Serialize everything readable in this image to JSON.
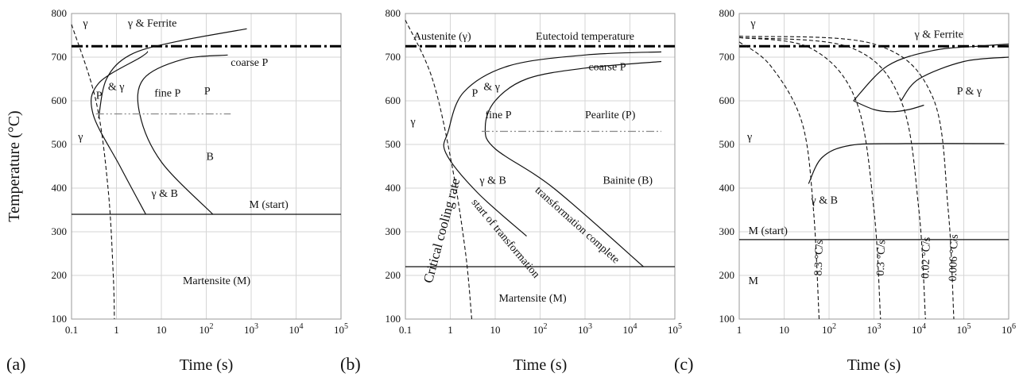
{
  "chart_data": [
    {
      "type": "line",
      "panel_label": "(a)",
      "xlabel": "Time (s)",
      "ylabel": "Temperature (°C)",
      "xscale": "log",
      "xlim": [
        0.1,
        100000
      ],
      "ylim": [
        100,
        800
      ],
      "x_ticks": [
        {
          "base": "0.1",
          "exp": ""
        },
        {
          "base": "1",
          "exp": ""
        },
        {
          "base": "10",
          "exp": ""
        },
        {
          "base": "10",
          "exp": "2"
        },
        {
          "base": "10",
          "exp": "3"
        },
        {
          "base": "10",
          "exp": "4"
        },
        {
          "base": "10",
          "exp": "5"
        }
      ],
      "y_ticks": [
        "100",
        "200",
        "300",
        "400",
        "500",
        "600",
        "700",
        "800"
      ],
      "grid": true,
      "series": [
        {
          "style": "dashdot-thick",
          "x": [
            0.1,
            100000
          ],
          "y": [
            725,
            725
          ]
        },
        {
          "style": "curve",
          "x": [
            0.4,
            0.6,
            2,
            20,
            800
          ],
          "y": [
            560,
            650,
            705,
            735,
            765
          ]
        },
        {
          "style": "curve",
          "x": [
            5,
            3.5,
            0.4,
            0.3,
            1.2,
            4.5
          ],
          "y": [
            713,
            700,
            640,
            570,
            450,
            340
          ]
        },
        {
          "style": "curve",
          "x": [
            300,
            30,
            4,
            3.3,
            10,
            140
          ],
          "y": [
            705,
            695,
            650,
            570,
            460,
            340
          ]
        },
        {
          "style": "dashdot-thin",
          "x": [
            0.35,
            350
          ],
          "y": [
            570,
            570
          ]
        },
        {
          "style": "hline",
          "x": [
            0.1,
            100000
          ],
          "y": [
            340,
            340
          ]
        },
        {
          "style": "dash",
          "x": [
            0.1,
            0.35,
            0.65,
            0.85,
            0.9
          ],
          "y": [
            775,
            600,
            400,
            200,
            100
          ]
        }
      ],
      "annotations": [
        {
          "text": "γ",
          "x": 0.18,
          "y": 770
        },
        {
          "text": "γ & Ferrite",
          "x": 1.8,
          "y": 770
        },
        {
          "text": "coarse P",
          "x": 350,
          "y": 680
        },
        {
          "text": "P",
          "x": 0.35,
          "y": 605
        },
        {
          "text": "& γ",
          "x": 0.65,
          "y": 625
        },
        {
          "text": "fine P",
          "x": 7,
          "y": 610
        },
        {
          "text": "P",
          "x": 90,
          "y": 615
        },
        {
          "text": "γ",
          "x": 0.14,
          "y": 510
        },
        {
          "text": "B",
          "x": 100,
          "y": 465
        },
        {
          "text": "γ & B",
          "x": 6,
          "y": 380
        },
        {
          "text": "M (start)",
          "x": 900,
          "y": 355
        },
        {
          "text": "Martensite (M)",
          "x": 30,
          "y": 180
        }
      ]
    },
    {
      "type": "line",
      "panel_label": "(b)",
      "xlabel": "Time (s)",
      "ylabel": "",
      "xscale": "log",
      "xlim": [
        0.1,
        100000
      ],
      "ylim": [
        100,
        800
      ],
      "x_ticks": [
        {
          "base": "0.1",
          "exp": ""
        },
        {
          "base": "1",
          "exp": ""
        },
        {
          "base": "10",
          "exp": ""
        },
        {
          "base": "10",
          "exp": "2"
        },
        {
          "base": "10",
          "exp": "3"
        },
        {
          "base": "10",
          "exp": "4"
        },
        {
          "base": "10",
          "exp": "5"
        }
      ],
      "y_ticks": [
        "100",
        "200",
        "300",
        "400",
        "500",
        "600",
        "700",
        "800"
      ],
      "grid": true,
      "series": [
        {
          "style": "dashdot-thick",
          "x": [
            0.1,
            100000
          ],
          "y": [
            725,
            725
          ]
        },
        {
          "style": "curve",
          "x": [
            50000,
            1000,
            20,
            2,
            0.9,
            0.8,
            4,
            50
          ],
          "y": [
            712,
            705,
            680,
            620,
            530,
            480,
            390,
            290
          ]
        },
        {
          "style": "curve",
          "x": [
            50000,
            1000,
            50,
            10,
            6,
            10,
            200,
            20000
          ],
          "y": [
            690,
            675,
            650,
            600,
            540,
            490,
            400,
            220
          ]
        },
        {
          "style": "dashdot-thin",
          "x": [
            5,
            50000
          ],
          "y": [
            530,
            530
          ]
        },
        {
          "style": "hline",
          "x": [
            0.1,
            100000
          ],
          "y": [
            220,
            220
          ]
        },
        {
          "style": "dash",
          "x": [
            0.1,
            0.4,
            1.1,
            2.2,
            3
          ],
          "y": [
            785,
            650,
            450,
            250,
            100
          ]
        }
      ],
      "annotations": [
        {
          "text": "Austenite (γ)",
          "x": 0.15,
          "y": 740
        },
        {
          "text": "Eutectoid temperature",
          "x": 80,
          "y": 740
        },
        {
          "text": "coarse P",
          "x": 1200,
          "y": 670
        },
        {
          "text": "P",
          "x": 3,
          "y": 610
        },
        {
          "text": "& γ",
          "x": 5.5,
          "y": 625
        },
        {
          "text": "Pearlite (P)",
          "x": 1000,
          "y": 560
        },
        {
          "text": "fine P",
          "x": 6,
          "y": 560
        },
        {
          "text": "γ",
          "x": 0.13,
          "y": 545
        },
        {
          "text": "γ & B",
          "x": 4.5,
          "y": 410
        },
        {
          "text": "Bainite (B)",
          "x": 2500,
          "y": 410
        },
        {
          "text": "Critical cooling rate",
          "x": 0.8,
          "y": 300
        },
        {
          "text": "start of transformation",
          "x": 15,
          "y": 280
        },
        {
          "text": "transformation complete",
          "x": 600,
          "y": 310
        },
        {
          "text": "Martensite (M)",
          "x": 12,
          "y": 140
        }
      ]
    },
    {
      "type": "line",
      "panel_label": "(c)",
      "xlabel": "Time (s)",
      "ylabel": "",
      "xscale": "log",
      "xlim": [
        1,
        1000000
      ],
      "ylim": [
        100,
        800
      ],
      "x_ticks": [
        {
          "base": "1",
          "exp": ""
        },
        {
          "base": "10",
          "exp": ""
        },
        {
          "base": "10",
          "exp": "2"
        },
        {
          "base": "10",
          "exp": "3"
        },
        {
          "base": "10",
          "exp": "4"
        },
        {
          "base": "10",
          "exp": "5"
        },
        {
          "base": "10",
          "exp": "6"
        }
      ],
      "y_ticks": [
        "100",
        "200",
        "300",
        "400",
        "500",
        "600",
        "700",
        "800"
      ],
      "grid": true,
      "series": [
        {
          "style": "dashdot-thick",
          "x": [
            1,
            1000000
          ],
          "y": [
            725,
            725
          ]
        },
        {
          "style": "curve",
          "x": [
            350,
            2000,
            20000,
            200000,
            1000000
          ],
          "y": [
            600,
            680,
            715,
            725,
            730
          ]
        },
        {
          "style": "curve",
          "x": [
            4000,
            10000,
            100000,
            1000000
          ],
          "y": [
            600,
            650,
            690,
            700
          ]
        },
        {
          "style": "curve",
          "x": [
            350,
            1000,
            2500,
            6000,
            13000
          ],
          "y": [
            600,
            580,
            575,
            580,
            590
          ]
        },
        {
          "style": "curve",
          "x": [
            35,
            70,
            300,
            5000,
            800000
          ],
          "y": [
            410,
            470,
            498,
            502,
            502
          ]
        },
        {
          "style": "hline",
          "x": [
            1,
            1000000
          ],
          "y": [
            282,
            282
          ]
        },
        {
          "style": "dash",
          "x": [
            1,
            5,
            25,
            45,
            60
          ],
          "y": [
            735,
            680,
            550,
            350,
            100
          ]
        },
        {
          "style": "dash",
          "x": [
            1,
            40,
            400,
            1000,
            1400
          ],
          "y": [
            745,
            720,
            600,
            350,
            100
          ]
        },
        {
          "style": "dash",
          "x": [
            1,
            300,
            4000,
            10000,
            14000
          ],
          "y": [
            745,
            722,
            600,
            350,
            100
          ]
        },
        {
          "style": "dash",
          "x": [
            1,
            1000,
            20000,
            45000,
            60000
          ],
          "y": [
            748,
            730,
            610,
            350,
            100
          ]
        }
      ],
      "annotations": [
        {
          "text": "γ",
          "x": 1.8,
          "y": 770
        },
        {
          "text": "γ & Ferrite",
          "x": 8000,
          "y": 745
        },
        {
          "text": "P & γ",
          "x": 70000,
          "y": 615
        },
        {
          "text": "γ",
          "x": 1.5,
          "y": 510
        },
        {
          "text": "γ & B",
          "x": 40,
          "y": 365
        },
        {
          "text": "M (start)",
          "x": 1.6,
          "y": 295
        },
        {
          "text": "M",
          "x": 1.6,
          "y": 180
        },
        {
          "text": "8.3 °C/s",
          "x": 70,
          "y": 240
        },
        {
          "text": "0.3 °C/s",
          "x": 1700,
          "y": 240
        },
        {
          "text": "0.02 °C/s",
          "x": 17000,
          "y": 240
        },
        {
          "text": "0.006 °C/s",
          "x": 70000,
          "y": 240
        }
      ]
    }
  ]
}
